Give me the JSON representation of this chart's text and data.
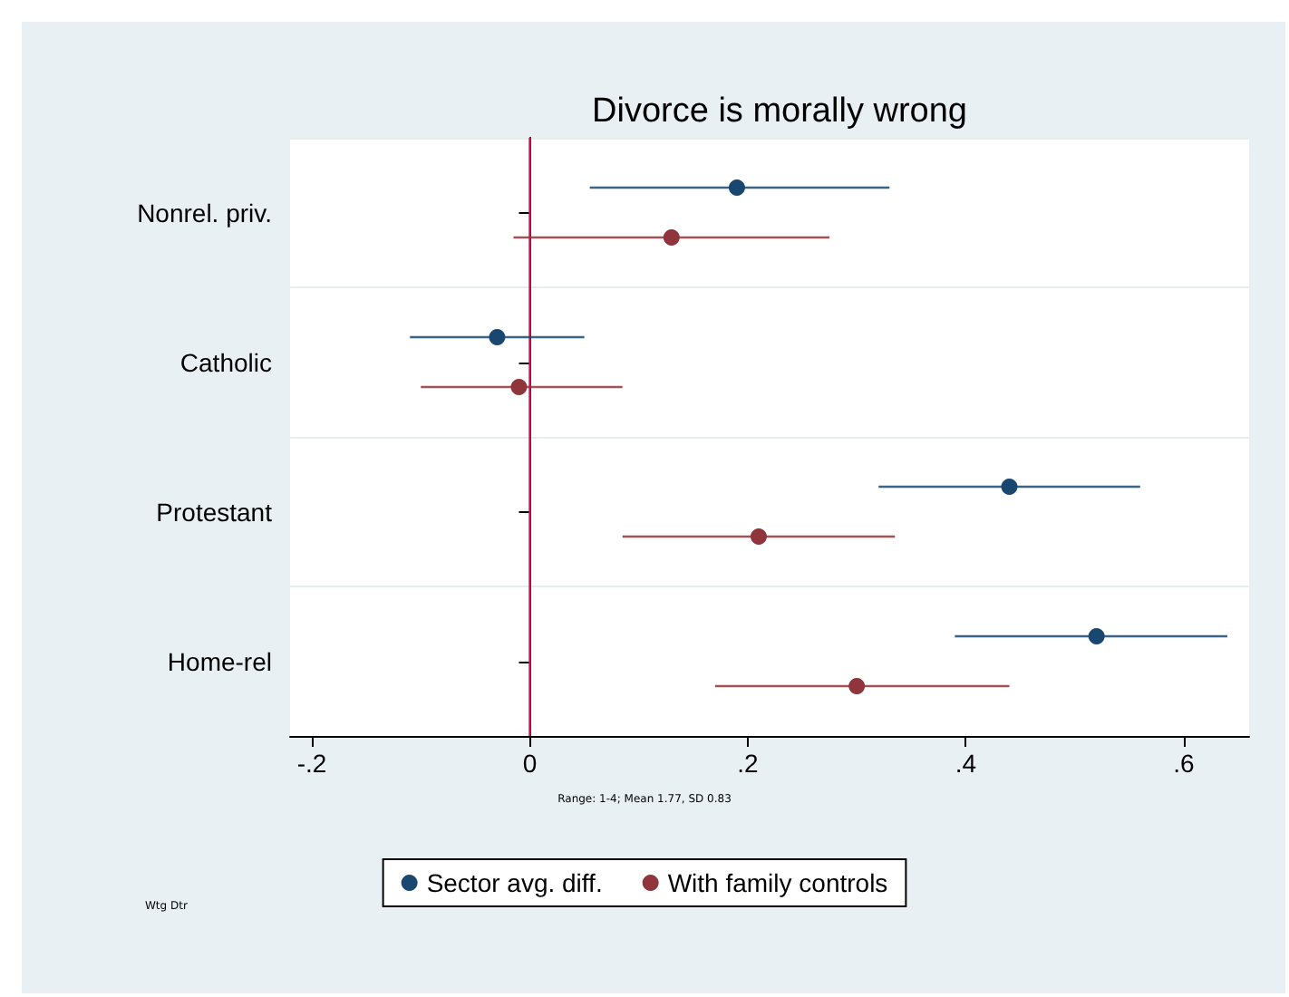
{
  "chart_data": {
    "type": "scatter",
    "orientation": "horizontal",
    "title": "Divorce is morally wrong",
    "categories": [
      "Nonrel. priv.",
      "Catholic",
      "Protestant",
      "Home-rel"
    ],
    "series": [
      {
        "name": "Sector avg. diff.",
        "color": "#1a476f",
        "values": [
          0.19,
          -0.03,
          0.44,
          0.52
        ],
        "errors": [
          [
            0.055,
            0.33
          ],
          [
            -0.11,
            0.05
          ],
          [
            0.32,
            0.56
          ],
          [
            0.39,
            0.64
          ]
        ]
      },
      {
        "name": "With family controls",
        "color": "#90353b",
        "values": [
          0.13,
          -0.01,
          0.21,
          0.3
        ],
        "errors": [
          [
            -0.015,
            0.275
          ],
          [
            -0.1,
            0.085
          ],
          [
            0.085,
            0.335
          ],
          [
            0.17,
            0.44
          ]
        ]
      }
    ],
    "xlim": [
      -0.22,
      0.66
    ],
    "xticks": [
      {
        "value": -0.2,
        "label": "-.2"
      },
      {
        "value": 0,
        "label": "0"
      },
      {
        "value": 0.2,
        "label": ".2"
      },
      {
        "value": 0.4,
        "label": ".4"
      },
      {
        "value": 0.6,
        "label": ".6"
      }
    ],
    "ref_lines": [
      {
        "axis": "x",
        "value": 0,
        "color": "#d4145a"
      }
    ],
    "annotations": [
      "Range: 1-4; Mean 1.77, SD 0.83",
      "Wtg Dtr"
    ],
    "marker": "circle",
    "grid": "y",
    "legend": "bottom"
  }
}
